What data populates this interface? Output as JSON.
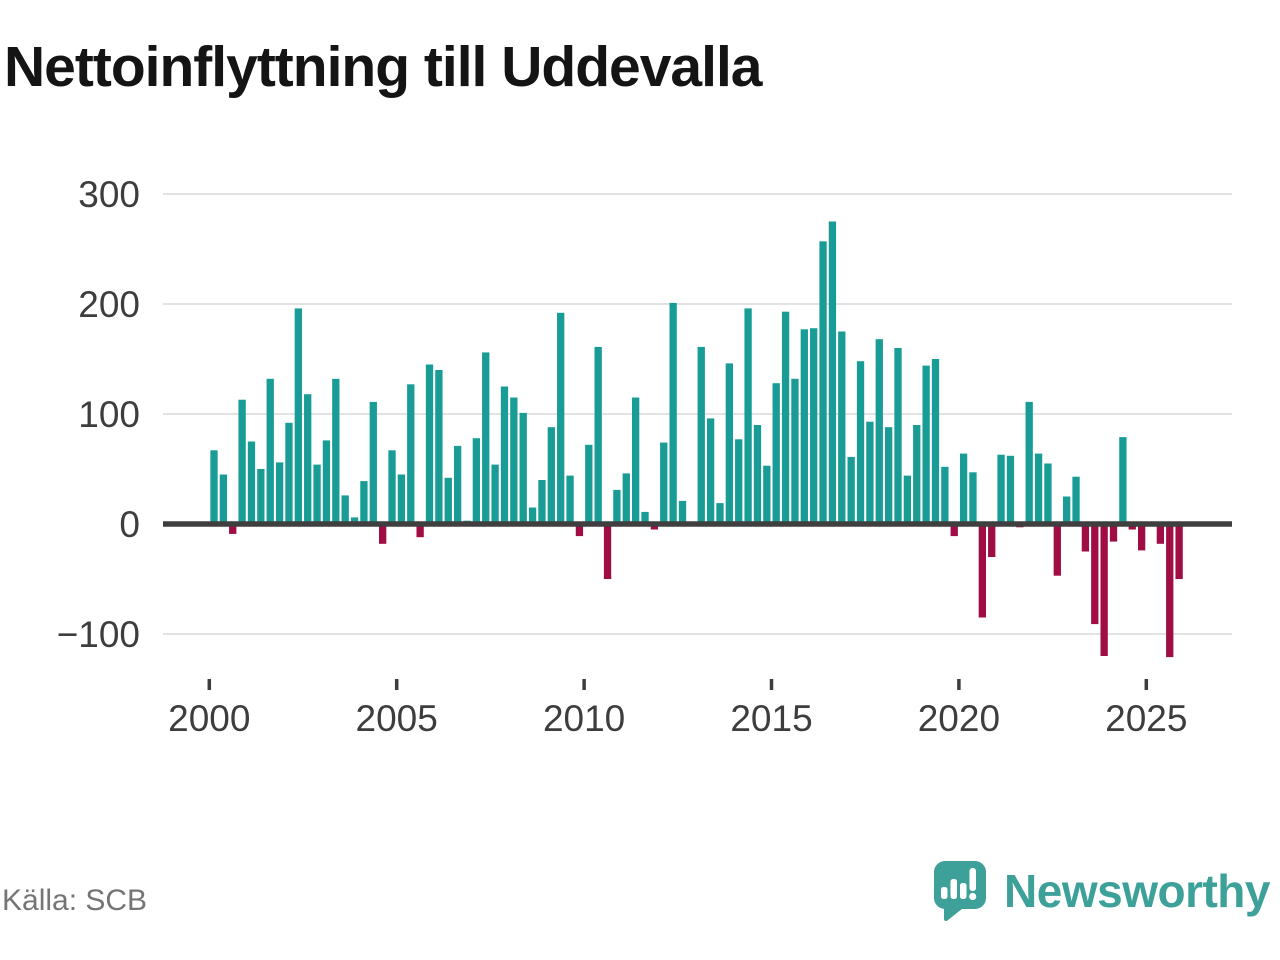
{
  "title": "Nettoinflyttning till Uddevalla",
  "source": "Källa: SCB",
  "branding": {
    "name": "Newsworthy",
    "icon": "newsworthy-speech-bubble-barchart-icon"
  },
  "colors": {
    "positive": "#189c95",
    "negative": "#9f0d44",
    "axis_text": "#3d3d3d",
    "grid": "#e2e2e2",
    "zero_line": "#3f3f3f",
    "title": "#141414",
    "source_text": "#757575",
    "brand": "#3da199"
  },
  "chart_data": {
    "type": "bar",
    "title": "Nettoinflyttning till Uddevalla",
    "frequency": "quarterly",
    "x_start": "2000Q1",
    "x_end": "2025Q4",
    "y_ticks": [
      300,
      200,
      100,
      0,
      -100
    ],
    "x_tick_years": [
      2000,
      2005,
      2010,
      2015,
      2020,
      2025
    ],
    "ylim": [
      -140,
      310
    ],
    "grid": true,
    "legend": false,
    "values": [
      67,
      45,
      -9,
      113,
      75,
      50,
      132,
      56,
      92,
      196,
      118,
      54,
      76,
      132,
      26,
      6,
      39,
      111,
      -18,
      67,
      45,
      127,
      -12,
      145,
      140,
      42,
      71,
      3,
      78,
      156,
      54,
      125,
      115,
      101,
      15,
      40,
      88,
      192,
      44,
      -11,
      72,
      161,
      -50,
      31,
      46,
      115,
      11,
      -5,
      74,
      201,
      21,
      0,
      161,
      96,
      19,
      146,
      77,
      196,
      90,
      53,
      128,
      193,
      132,
      177,
      178,
      257,
      275,
      175,
      61,
      148,
      93,
      168,
      88,
      160,
      44,
      90,
      144,
      150,
      52,
      -11,
      64,
      47,
      -85,
      -30,
      63,
      62,
      -3,
      111,
      64,
      55,
      -47,
      25,
      43,
      -25,
      -91,
      -120,
      -16,
      79,
      -5,
      -24,
      0,
      -18,
      -121,
      -50
    ]
  }
}
